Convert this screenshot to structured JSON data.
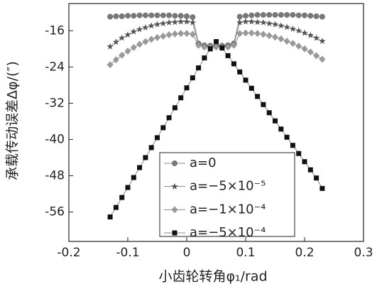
{
  "chart_data": {
    "type": "line",
    "x_label": "小齿轮转角φ₁/rad",
    "y_label": "承载传动误差Δφ/(″)",
    "x": [
      -0.13,
      -0.12,
      -0.11,
      -0.1,
      -0.09,
      -0.08,
      -0.07,
      -0.06,
      -0.05,
      -0.04,
      -0.03,
      -0.02,
      -0.01,
      0,
      0.01,
      0.02,
      0.03,
      0.04,
      0.05,
      0.06,
      0.07,
      0.08,
      0.09,
      0.1,
      0.11,
      0.12,
      0.13,
      0.14,
      0.15,
      0.16,
      0.17,
      0.18,
      0.19,
      0.2,
      0.21,
      0.22,
      0.23
    ],
    "series": [
      {
        "name": "a=0",
        "color": "#777777",
        "marker": "circle",
        "values": [
          -12.9,
          -12.8,
          -12.8,
          -12.7,
          -12.7,
          -12.6,
          -12.6,
          -12.6,
          -12.6,
          -12.6,
          -12.6,
          -12.7,
          -12.7,
          -12.8,
          -13.0,
          -18.8,
          -19.2,
          -19.3,
          -19.2,
          -19.3,
          -19.2,
          -18.8,
          -12.9,
          -12.7,
          -12.6,
          -12.5,
          -12.5,
          -12.5,
          -12.5,
          -12.5,
          -12.5,
          -12.5,
          -12.6,
          -12.6,
          -12.7,
          -12.8,
          -12.9
        ]
      },
      {
        "name": "a=−5×10⁻⁵",
        "color": "#555555",
        "marker": "star",
        "values": [
          -19.5,
          -18.5,
          -17.6,
          -16.9,
          -16.2,
          -15.7,
          -15.3,
          -14.9,
          -14.6,
          -14.4,
          -14.2,
          -14.1,
          -14.0,
          -14.0,
          -14.2,
          -19.0,
          -19.4,
          -19.5,
          -19.4,
          -19.5,
          -19.4,
          -19.0,
          -14.2,
          -14.0,
          -14.0,
          -14.1,
          -14.2,
          -14.4,
          -14.6,
          -14.9,
          -15.2,
          -15.6,
          -16.0,
          -16.5,
          -17.0,
          -17.6,
          -18.3
        ]
      },
      {
        "name": "a=−1×10⁻⁴",
        "color": "#999999",
        "marker": "diamond",
        "values": [
          -23.5,
          -22.4,
          -21.4,
          -20.5,
          -19.7,
          -19.0,
          -18.4,
          -17.9,
          -17.5,
          -17.2,
          -16.9,
          -16.7,
          -16.6,
          -16.6,
          -16.8,
          -19.2,
          -19.6,
          -19.7,
          -19.6,
          -19.7,
          -19.6,
          -19.2,
          -16.6,
          -16.5,
          -16.5,
          -16.6,
          -16.8,
          -17.1,
          -17.4,
          -17.8,
          -18.3,
          -18.8,
          -19.4,
          -20.0,
          -20.7,
          -21.5,
          -22.3
        ]
      },
      {
        "name": "a=−5×10⁻⁴",
        "color": "#111111",
        "marker": "square",
        "values": [
          -57.1,
          -55.0,
          -52.8,
          -50.6,
          -48.4,
          -46.2,
          -44.0,
          -41.8,
          -39.6,
          -37.4,
          -35.2,
          -33.0,
          -30.8,
          -28.6,
          -26.4,
          -24.2,
          -22.0,
          -20.0,
          -18.4,
          -19.8,
          -21.5,
          -23.3,
          -25.1,
          -26.9,
          -28.7,
          -30.5,
          -32.3,
          -34.1,
          -35.9,
          -37.7,
          -39.5,
          -41.3,
          -43.1,
          -44.9,
          -46.7,
          -48.5,
          -50.8
        ]
      }
    ],
    "xlim": [
      -0.2,
      0.3
    ],
    "xticks": [
      -0.2,
      -0.1,
      0,
      0.1,
      0.2,
      0.3
    ],
    "ylim": [
      -62.5,
      -10
    ],
    "yticks": [
      -56,
      -48,
      -40,
      -32,
      -24,
      -16
    ],
    "legend": "lower center"
  }
}
